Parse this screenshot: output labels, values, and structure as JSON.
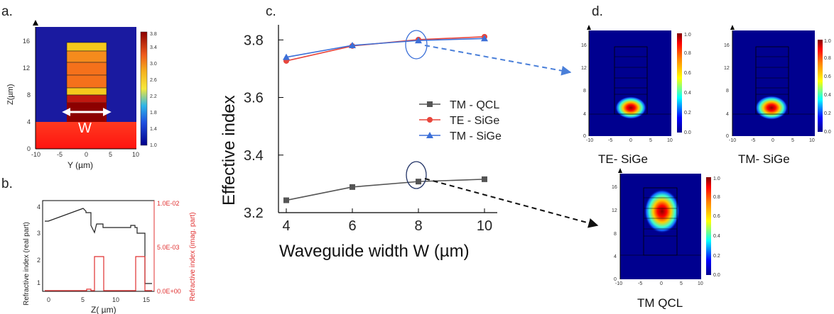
{
  "panel_labels": {
    "a": "a.",
    "b": "b.",
    "c": "c.",
    "d": "d."
  },
  "panel_a": {
    "ylabel": "Z(µm)",
    "xlabel": "Y (µm)",
    "width_label": "W",
    "xticks": [
      "-10",
      "-5",
      "0",
      "5",
      "10"
    ],
    "yticks": [
      "0",
      "4",
      "8",
      "12",
      "16"
    ],
    "colorbar_ticks": [
      "1.0",
      "1.4",
      "1.8",
      "2.2",
      "2.6",
      "3.0",
      "3.4",
      "3.8"
    ]
  },
  "panel_b": {
    "ylabel_left": "Refractive index (real part)",
    "ylabel_right": "Refractive index (imag. part)",
    "xlabel": "Z( µm)",
    "xticks": [
      "0",
      "5",
      "10",
      "15"
    ],
    "yticks_left": [
      "1",
      "2",
      "3",
      "4"
    ],
    "yticks_right": [
      "0.0E+00",
      "5.0E-03",
      "1.0E-02"
    ]
  },
  "chart_data": {
    "type": "line",
    "xlabel": "Waveguide width W (µm)",
    "ylabel": "Effective index",
    "x": [
      4,
      6,
      8,
      10
    ],
    "xlim": [
      4,
      10
    ],
    "ylim": [
      3.2,
      3.85
    ],
    "xticks": [
      "4",
      "6",
      "8",
      "10"
    ],
    "yticks": [
      "3.2",
      "3.4",
      "3.6",
      "3.8"
    ],
    "legend_position": "center-right",
    "series": [
      {
        "name": "TM - QCL",
        "values": [
          3.243,
          3.289,
          3.308,
          3.316
        ],
        "color": "#555555",
        "marker": "square"
      },
      {
        "name": "TE - SiGe",
        "values": [
          3.727,
          3.779,
          3.801,
          3.811
        ],
        "color": "#e8463c",
        "marker": "circle"
      },
      {
        "name": "TM - SiGe",
        "values": [
          3.74,
          3.781,
          3.798,
          3.805
        ],
        "color": "#3b6fd8",
        "marker": "triangle"
      }
    ]
  },
  "panel_d": {
    "captions": [
      "TE- SiGe",
      "TM- SiGe",
      "TM QCL"
    ],
    "colorbar_ticks": [
      "0.0",
      "0.2",
      "0.4",
      "0.6",
      "0.8",
      "1.0"
    ],
    "xticks": [
      "-10",
      "-5",
      "0",
      "5",
      "10"
    ],
    "yticks": [
      "0",
      "4",
      "8",
      "12",
      "16"
    ]
  }
}
